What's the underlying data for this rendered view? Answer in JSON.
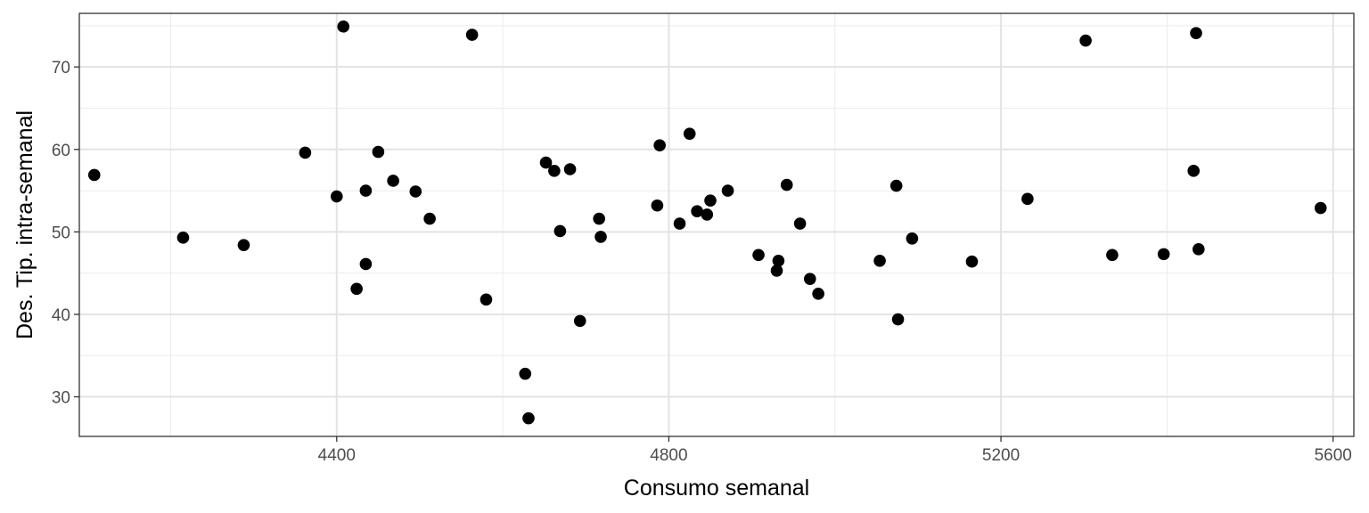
{
  "chart_data": {
    "type": "scatter",
    "title": "",
    "xlabel": "Consumo semanal",
    "ylabel": "Des. Tip. intra-semanal",
    "xlim": [
      4090,
      5625
    ],
    "ylim": [
      25.2,
      76.5
    ],
    "x_ticks": [
      4400,
      4800,
      5200,
      5600
    ],
    "x_minor_ticks": [
      4200,
      4600,
      5000,
      5400
    ],
    "y_ticks": [
      30,
      40,
      50,
      60,
      70
    ],
    "y_minor_ticks": [
      35,
      45,
      55,
      65,
      75
    ],
    "x_tick_labels": [
      "4400",
      "4800",
      "5200",
      "5600"
    ],
    "y_tick_labels": [
      "30",
      "40",
      "50",
      "60",
      "70"
    ],
    "grid": true,
    "theme": "bw",
    "point_color": "#000000",
    "points": [
      {
        "x": 4108,
        "y": 56.9
      },
      {
        "x": 4215,
        "y": 49.3
      },
      {
        "x": 4288,
        "y": 48.4
      },
      {
        "x": 4362,
        "y": 59.6
      },
      {
        "x": 4400,
        "y": 54.3
      },
      {
        "x": 4408,
        "y": 74.9
      },
      {
        "x": 4424,
        "y": 43.1
      },
      {
        "x": 4435,
        "y": 46.1
      },
      {
        "x": 4435,
        "y": 55.0
      },
      {
        "x": 4450,
        "y": 59.7
      },
      {
        "x": 4468,
        "y": 56.2
      },
      {
        "x": 4495,
        "y": 54.9
      },
      {
        "x": 4512,
        "y": 51.6
      },
      {
        "x": 4563,
        "y": 73.9
      },
      {
        "x": 4580,
        "y": 41.8
      },
      {
        "x": 4627,
        "y": 32.8
      },
      {
        "x": 4631,
        "y": 27.4
      },
      {
        "x": 4652,
        "y": 58.4
      },
      {
        "x": 4662,
        "y": 57.4
      },
      {
        "x": 4669,
        "y": 50.1
      },
      {
        "x": 4681,
        "y": 57.6
      },
      {
        "x": 4693,
        "y": 39.2
      },
      {
        "x": 4716,
        "y": 51.6
      },
      {
        "x": 4718,
        "y": 49.4
      },
      {
        "x": 4786,
        "y": 53.2
      },
      {
        "x": 4789,
        "y": 60.5
      },
      {
        "x": 4813,
        "y": 51.0
      },
      {
        "x": 4825,
        "y": 61.9
      },
      {
        "x": 4834,
        "y": 52.5
      },
      {
        "x": 4846,
        "y": 52.1
      },
      {
        "x": 4850,
        "y": 53.8
      },
      {
        "x": 4871,
        "y": 55.0
      },
      {
        "x": 4908,
        "y": 47.2
      },
      {
        "x": 4930,
        "y": 45.3
      },
      {
        "x": 4932,
        "y": 46.5
      },
      {
        "x": 4942,
        "y": 55.7
      },
      {
        "x": 4958,
        "y": 51.0
      },
      {
        "x": 4970,
        "y": 44.3
      },
      {
        "x": 4980,
        "y": 42.5
      },
      {
        "x": 5054,
        "y": 46.5
      },
      {
        "x": 5074,
        "y": 55.6
      },
      {
        "x": 5076,
        "y": 39.4
      },
      {
        "x": 5093,
        "y": 49.2
      },
      {
        "x": 5165,
        "y": 46.4
      },
      {
        "x": 5232,
        "y": 54.0
      },
      {
        "x": 5302,
        "y": 73.2
      },
      {
        "x": 5334,
        "y": 47.2
      },
      {
        "x": 5396,
        "y": 47.3
      },
      {
        "x": 5432,
        "y": 57.4
      },
      {
        "x": 5435,
        "y": 74.1
      },
      {
        "x": 5438,
        "y": 47.9
      },
      {
        "x": 5585,
        "y": 52.9
      }
    ]
  }
}
